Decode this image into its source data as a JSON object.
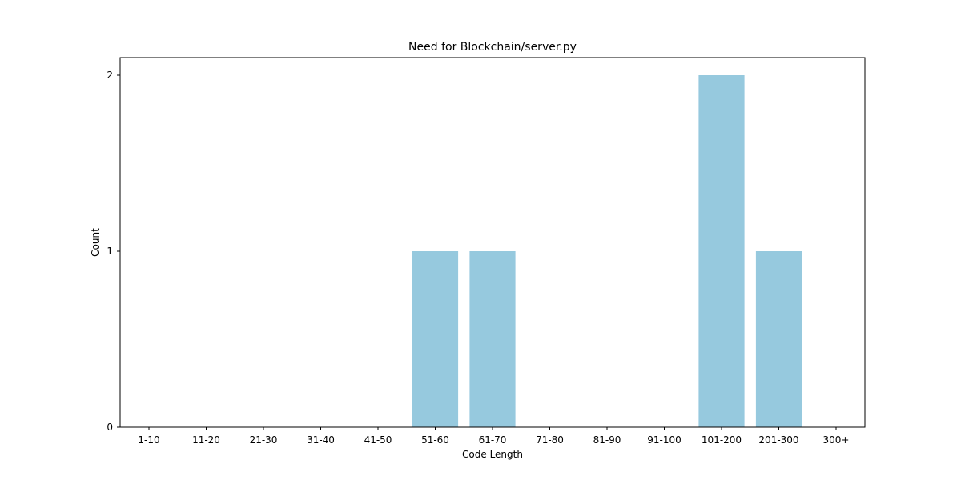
{
  "chart_data": {
    "type": "bar",
    "title": "Need for Blockchain/server.py",
    "xlabel": "Code Length",
    "ylabel": "Count",
    "categories": [
      "1-10",
      "11-20",
      "21-30",
      "31-40",
      "41-50",
      "51-60",
      "61-70",
      "71-80",
      "81-90",
      "91-100",
      "101-200",
      "201-300",
      "300+"
    ],
    "values": [
      0,
      0,
      0,
      0,
      0,
      1,
      1,
      0,
      0,
      0,
      2,
      1,
      0
    ],
    "yticks": [
      0,
      1,
      2
    ],
    "ylim": [
      0,
      2.1
    ],
    "grid": false,
    "legend": "none",
    "colors": {
      "bar": "#96c9de",
      "axis": "#000000",
      "text": "#000000"
    }
  }
}
